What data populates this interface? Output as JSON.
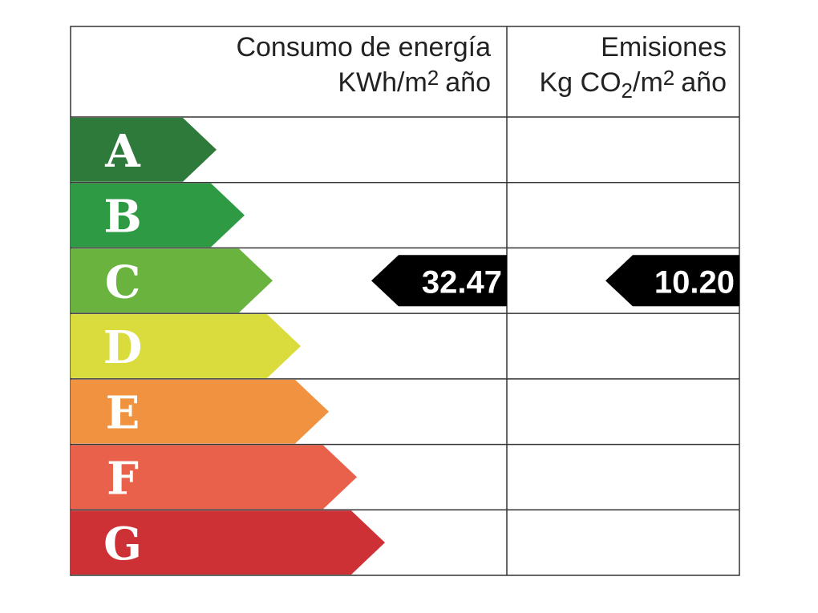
{
  "header": {
    "energy": {
      "title": "Consumo de energía",
      "unit": [
        "KWh/m",
        "2",
        "año"
      ]
    },
    "emissions": {
      "title": "Emisiones",
      "unit": [
        "Kg CO",
        "2",
        "/m",
        "2",
        "año"
      ]
    }
  },
  "ratings": [
    {
      "letter": "A",
      "color": "#2e7a3a"
    },
    {
      "letter": "B",
      "color": "#2f9a44"
    },
    {
      "letter": "C",
      "color": "#6ab33f",
      "energy": "32.47",
      "emissions": "10.20"
    },
    {
      "letter": "D",
      "color": "#d9dc3c"
    },
    {
      "letter": "E",
      "color": "#f0923f"
    },
    {
      "letter": "F",
      "color": "#e9614a"
    },
    {
      "letter": "G",
      "color": "#cd3035"
    }
  ]
}
